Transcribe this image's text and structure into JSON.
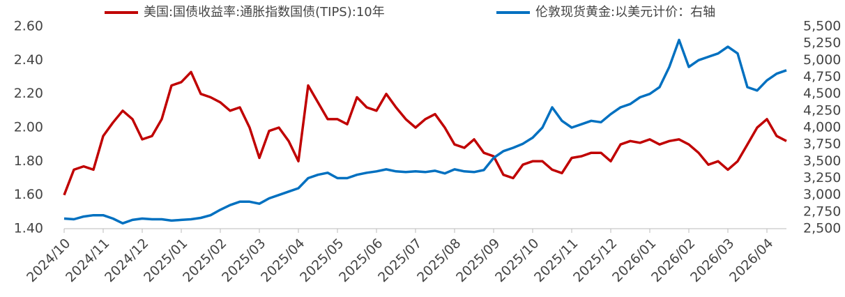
{
  "chart_data": {
    "type": "line",
    "categories": [
      "2024/10",
      null,
      null,
      null,
      "2024/11",
      null,
      null,
      null,
      "2024/12",
      null,
      null,
      null,
      "2025/01",
      null,
      null,
      null,
      "2025/02",
      null,
      null,
      null,
      "2025/03",
      null,
      null,
      null,
      "2025/04",
      null,
      null,
      null,
      "2025/05",
      null,
      null,
      null,
      "2025/06",
      null,
      null,
      null,
      "2025/07",
      null,
      null,
      null,
      "2025/08",
      null,
      null,
      null,
      "2025/09",
      null,
      null,
      null,
      "2025/10",
      null,
      null,
      null,
      "2025/11",
      null,
      null,
      null,
      "2025/12",
      null,
      null,
      null,
      "2026/01",
      null,
      null,
      null,
      "2026/02",
      null,
      null,
      null,
      "2026/03",
      null,
      null,
      null,
      "2026/04",
      null,
      null
    ],
    "series": [
      {
        "name": "美国:国债收益率:通胀指数国债(TIPS):10年",
        "color": "#c00000",
        "values": [
          1.6,
          1.75,
          1.77,
          1.75,
          1.95,
          2.03,
          2.1,
          2.05,
          1.93,
          1.95,
          2.05,
          2.25,
          2.27,
          2.33,
          2.2,
          2.18,
          2.15,
          2.1,
          2.12,
          2.0,
          1.82,
          1.98,
          2.0,
          1.92,
          1.8,
          2.25,
          2.15,
          2.05,
          2.05,
          2.02,
          2.18,
          2.12,
          2.1,
          2.2,
          2.12,
          2.05,
          2.0,
          2.05,
          2.08,
          2.0,
          1.9,
          1.88,
          1.93,
          1.85,
          1.83,
          1.72,
          1.7,
          1.78,
          1.8,
          1.8,
          1.75,
          1.73,
          1.82,
          1.83,
          1.85,
          1.85,
          1.8,
          1.9,
          1.92,
          1.91,
          1.93,
          1.9,
          1.92,
          1.93,
          1.9,
          1.85,
          1.78,
          1.8,
          1.75,
          1.8,
          1.9,
          2.0,
          2.05,
          1.95,
          1.92
        ]
      },
      {
        "name": "伦敦现货黄金:以美元计价：右轴",
        "color": "#0070c0",
        "axis": "y2",
        "values": [
          2650,
          2640,
          2680,
          2700,
          2700,
          2650,
          2580,
          2630,
          2650,
          2640,
          2640,
          2620,
          2630,
          2640,
          2660,
          2700,
          2780,
          2850,
          2900,
          2900,
          2870,
          2950,
          3000,
          3050,
          3100,
          3250,
          3300,
          3330,
          3250,
          3250,
          3300,
          3330,
          3350,
          3380,
          3350,
          3340,
          3350,
          3340,
          3360,
          3320,
          3380,
          3350,
          3340,
          3370,
          3550,
          3650,
          3700,
          3760,
          3850,
          4000,
          4300,
          4100,
          4000,
          4050,
          4100,
          4080,
          4200,
          4300,
          4350,
          4450,
          4500,
          4600,
          4900,
          5300,
          4900,
          5000,
          5050,
          5100,
          5200,
          5100,
          4600,
          4550,
          4700,
          4800,
          4850
        ]
      }
    ],
    "ylim": [
      1.4,
      2.6
    ],
    "yticks": [
      {
        "value": 1.4,
        "label": "1.40"
      },
      {
        "value": 1.6,
        "label": "1.60"
      },
      {
        "value": 1.8,
        "label": "1.80"
      },
      {
        "value": 2.0,
        "label": "2.00"
      },
      {
        "value": 2.2,
        "label": "2.20"
      },
      {
        "value": 2.4,
        "label": "2.40"
      },
      {
        "value": 2.6,
        "label": "2.60"
      }
    ],
    "y2lim": [
      2500,
      5500
    ],
    "y2ticks": [
      {
        "value": 2500,
        "label": "2,500"
      },
      {
        "value": 2750,
        "label": "2,750"
      },
      {
        "value": 3000,
        "label": "3,000"
      },
      {
        "value": 3250,
        "label": "3,250"
      },
      {
        "value": 3500,
        "label": "3,500"
      },
      {
        "value": 3750,
        "label": "3,750"
      },
      {
        "value": 4000,
        "label": "4,000"
      },
      {
        "value": 4250,
        "label": "4,250"
      },
      {
        "value": 4500,
        "label": "4,500"
      },
      {
        "value": 4750,
        "label": "4,750"
      },
      {
        "value": 5000,
        "label": "5,000"
      },
      {
        "value": 5250,
        "label": "5,250"
      },
      {
        "value": 5500,
        "label": "5,500"
      }
    ],
    "legend": "top"
  }
}
